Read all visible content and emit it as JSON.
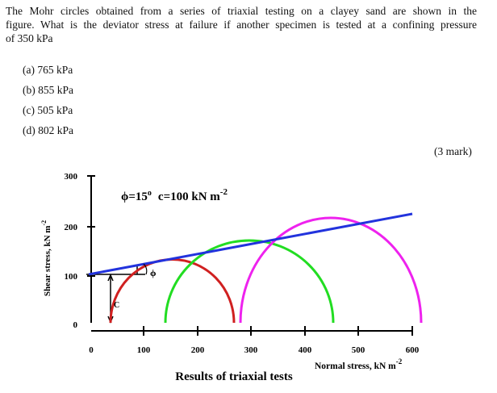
{
  "question": {
    "lines": [
      "The Mohr circles obtained from a series of triaxial testing on a clayey sand are shown in the",
      "figure. What is the deviator stress at failure if another specimen is tested at a confining pressure",
      "of 350 kPa"
    ],
    "options": [
      "(a) 765 kPa",
      "(b) 855 kPa",
      "(c) 505 kPa",
      "(d) 802 kPa"
    ],
    "mark": "(3 mark)"
  },
  "figure": {
    "y_label": "Shear stress, kN m",
    "y_label_exp": "-2",
    "y_ticks": [
      "300",
      "200",
      "100",
      "0"
    ],
    "x_ticks": [
      "0",
      "100",
      "200",
      "300",
      "400",
      "500",
      "600"
    ],
    "x_label": "Normal stress, kN m",
    "x_label_exp": "-2",
    "formula": "ϕ=15",
    "formula_deg": "o",
    "formula_rest": "c=100 kN m",
    "formula_exp": "-2",
    "phi": "ϕ",
    "c": "C",
    "caption": "Results of triaxial tests"
  }
}
